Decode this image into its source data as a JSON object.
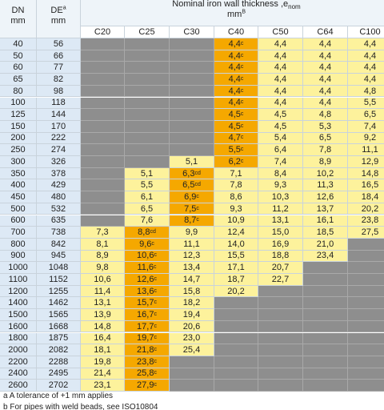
{
  "header": {
    "dn": {
      "label": "DN",
      "unit": "mm"
    },
    "de": {
      "label": "DE",
      "sup": "a",
      "unit": "mm"
    },
    "title": {
      "text": "Nominal iron wall thickness ,e",
      "sub": "nom",
      "unit": "mm",
      "sup": "B"
    },
    "classes": [
      "C20",
      "C25",
      "C30",
      "C40",
      "C50",
      "C64",
      "C100"
    ]
  },
  "rows": [
    {
      "dn": "40",
      "de": "56",
      "cells": [
        null,
        null,
        null,
        {
          "v": "4,4",
          "sup": "c"
        },
        "4,4",
        "4,4",
        "4,4"
      ]
    },
    {
      "dn": "50",
      "de": "66",
      "cells": [
        null,
        null,
        null,
        {
          "v": "4,4",
          "sup": "c"
        },
        "4,4",
        "4,4",
        "4,4"
      ]
    },
    {
      "dn": "60",
      "de": "77",
      "cells": [
        null,
        null,
        null,
        {
          "v": "4,4",
          "sup": "c"
        },
        "4,4",
        "4,4",
        "4,4"
      ]
    },
    {
      "dn": "65",
      "de": "82",
      "cells": [
        null,
        null,
        null,
        {
          "v": "4,4",
          "sup": "c"
        },
        "4,4",
        "4,4",
        "4,4"
      ]
    },
    {
      "dn": "80",
      "de": "98",
      "cells": [
        null,
        null,
        null,
        {
          "v": "4,4",
          "sup": "c"
        },
        "4,4",
        "4,4",
        "4,8"
      ]
    },
    {
      "dn": "100",
      "de": "118",
      "cells": [
        null,
        null,
        null,
        {
          "v": "4,4",
          "sup": "c"
        },
        "4,4",
        "4,4",
        "5,5"
      ]
    },
    {
      "dn": "125",
      "de": "144",
      "cells": [
        null,
        null,
        null,
        {
          "v": "4,5",
          "sup": "c"
        },
        "4,5",
        "4,8",
        "6,5"
      ]
    },
    {
      "dn": "150",
      "de": "170",
      "cells": [
        null,
        null,
        null,
        {
          "v": "4,5",
          "sup": "c"
        },
        "4,5",
        "5,3",
        "7,4"
      ]
    },
    {
      "dn": "200",
      "de": "222",
      "cells": [
        null,
        null,
        null,
        {
          "v": "4,7",
          "sup": "c"
        },
        "5,4",
        "6,5",
        "9,2"
      ]
    },
    {
      "dn": "250",
      "de": "274",
      "cells": [
        null,
        null,
        null,
        {
          "v": "5,5",
          "sup": "c"
        },
        "6,4",
        "7,8",
        "11,1"
      ]
    },
    {
      "dn": "300",
      "de": "326",
      "cells": [
        null,
        null,
        "5,1",
        {
          "v": "6,2",
          "sup": "c"
        },
        "7,4",
        "8,9",
        "12,9"
      ]
    },
    {
      "dn": "350",
      "de": "378",
      "cells": [
        null,
        "5,1",
        {
          "v": "6,3",
          "sup": "cd"
        },
        "7,1",
        "8,4",
        "10,2",
        "14,8"
      ]
    },
    {
      "dn": "400",
      "de": "429",
      "cells": [
        null,
        "5,5",
        {
          "v": "6,5",
          "sup": "cd"
        },
        "7,8",
        "9,3",
        "11,3",
        "16,5"
      ]
    },
    {
      "dn": "450",
      "de": "480",
      "cells": [
        null,
        "6,1",
        {
          "v": "6,9",
          "sup": "c"
        },
        "8,6",
        "10,3",
        "12,6",
        "18,4"
      ]
    },
    {
      "dn": "500",
      "de": "532",
      "cells": [
        null,
        "6,5",
        {
          "v": "7,5",
          "sup": "c"
        },
        "9,3",
        "11,2",
        "13,7",
        "20,2"
      ]
    },
    {
      "dn": "600",
      "de": "635",
      "cells": [
        null,
        "7,6",
        {
          "v": "8,7",
          "sup": "c"
        },
        "10,9",
        "13,1",
        "16,1",
        "23,8"
      ]
    },
    {
      "dn": "700",
      "de": "738",
      "cells": [
        "7,3",
        {
          "v": "8,8",
          "sup": "cd"
        },
        "9,9",
        "12,4",
        "15,0",
        "18,5",
        "27,5"
      ]
    },
    {
      "dn": "800",
      "de": "842",
      "cells": [
        "8,1",
        {
          "v": "9,6",
          "sup": "c"
        },
        "11,1",
        "14,0",
        "16,9",
        "21,0",
        null
      ]
    },
    {
      "dn": "900",
      "de": "945",
      "cells": [
        "8,9",
        {
          "v": "10,6",
          "sup": "c"
        },
        "12,3",
        "15,5",
        "18,8",
        "23,4",
        null
      ]
    },
    {
      "dn": "1000",
      "de": "1048",
      "cells": [
        "9,8",
        {
          "v": "11,6",
          "sup": "c"
        },
        "13,4",
        "17,1",
        "20,7",
        null,
        null
      ]
    },
    {
      "dn": "1100",
      "de": "1152",
      "cells": [
        "10,6",
        {
          "v": "12,6",
          "sup": "c"
        },
        "14,7",
        "18,7",
        "22,7",
        null,
        null
      ]
    },
    {
      "dn": "1200",
      "de": "1255",
      "cells": [
        "11,4",
        {
          "v": "13,6",
          "sup": "c"
        },
        "15,8",
        "20,2",
        null,
        null,
        null
      ]
    },
    {
      "dn": "1400",
      "de": "1462",
      "cells": [
        "13,1",
        {
          "v": "15,7",
          "sup": "c"
        },
        "18,2",
        null,
        null,
        null,
        null
      ]
    },
    {
      "dn": "1500",
      "de": "1565",
      "cells": [
        "13,9",
        {
          "v": "16,7",
          "sup": "c"
        },
        "19,4",
        null,
        null,
        null,
        null
      ]
    },
    {
      "dn": "1600",
      "de": "1668",
      "cells": [
        "14,8",
        {
          "v": "17,7",
          "sup": "c"
        },
        "20,6",
        null,
        null,
        null,
        null
      ]
    },
    {
      "dn": "1800",
      "de": "1875",
      "cells": [
        "16,4",
        {
          "v": "19,7",
          "sup": "c"
        },
        "23,0",
        null,
        null,
        null,
        null
      ]
    },
    {
      "dn": "2000",
      "de": "2082",
      "cells": [
        "18,1",
        {
          "v": "21,8",
          "sup": "c"
        },
        "25,4",
        null,
        null,
        null,
        null
      ]
    },
    {
      "dn": "2200",
      "de": "2288",
      "cells": [
        "19,8",
        {
          "v": "23,8",
          "sup": "c"
        },
        null,
        null,
        null,
        null,
        null
      ]
    },
    {
      "dn": "2400",
      "de": "2495",
      "cells": [
        "21,4",
        {
          "v": "25,8",
          "sup": "c"
        },
        null,
        null,
        null,
        null,
        null
      ]
    },
    {
      "dn": "2600",
      "de": "2702",
      "cells": [
        "23,1",
        {
          "v": "27,9",
          "sup": "c"
        },
        null,
        null,
        null,
        null,
        null
      ]
    }
  ],
  "footnotes": [
    "a A tolerance of +1 mm applies",
    "b For pipes with weld beads, see ISO10804"
  ]
}
